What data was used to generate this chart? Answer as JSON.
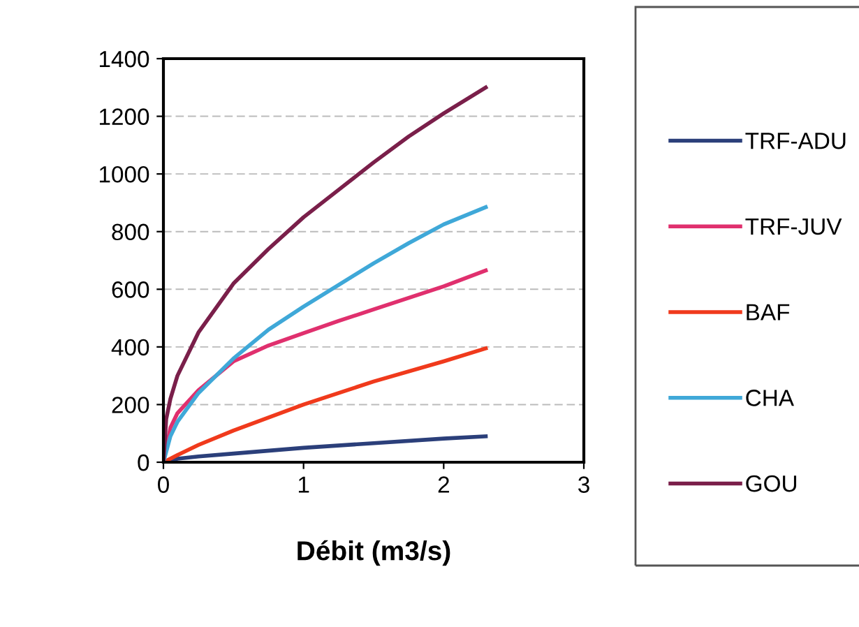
{
  "chart_data": {
    "type": "line",
    "xlabel": "Débit (m3/s)",
    "xlim": [
      0,
      3
    ],
    "xticks": [
      0,
      1,
      2,
      3
    ],
    "ylim": [
      0,
      1400
    ],
    "yticks": [
      0,
      200,
      400,
      600,
      800,
      1000,
      1200,
      1400
    ],
    "grid": "y",
    "legend": "right",
    "marker": "none",
    "line_style": "solid",
    "series": [
      {
        "name": "TRF-ADU",
        "color": "#2b3f7a",
        "x": [
          0,
          0.1,
          0.25,
          0.5,
          1,
          1.5,
          2,
          2.3
        ],
        "values": [
          0,
          12,
          20,
          30,
          50,
          66,
          82,
          90
        ]
      },
      {
        "name": "TRF-JUV",
        "color": "#e0306e",
        "x": [
          0,
          0.05,
          0.1,
          0.25,
          0.5,
          0.75,
          1,
          1.25,
          1.5,
          1.75,
          2,
          2.3
        ],
        "values": [
          0,
          120,
          170,
          250,
          350,
          405,
          448,
          490,
          530,
          570,
          610,
          665
        ]
      },
      {
        "name": "BAF",
        "color": "#f03a1c",
        "x": [
          0,
          0.1,
          0.25,
          0.5,
          1,
          1.5,
          2,
          2.3
        ],
        "values": [
          0,
          25,
          60,
          110,
          200,
          280,
          350,
          395
        ]
      },
      {
        "name": "CHA",
        "color": "#3fa8d8",
        "x": [
          0,
          0.05,
          0.1,
          0.25,
          0.5,
          0.75,
          1,
          1.25,
          1.5,
          1.75,
          2,
          2.3
        ],
        "values": [
          0,
          90,
          140,
          240,
          360,
          460,
          540,
          615,
          690,
          760,
          825,
          885
        ]
      },
      {
        "name": "GOU",
        "color": "#7a1f4a",
        "x": [
          0,
          0.02,
          0.05,
          0.1,
          0.25,
          0.5,
          0.75,
          1,
          1.25,
          1.5,
          1.75,
          2,
          2.3
        ],
        "values": [
          0,
          150,
          220,
          300,
          450,
          620,
          740,
          850,
          945,
          1040,
          1130,
          1210,
          1300
        ]
      }
    ]
  }
}
